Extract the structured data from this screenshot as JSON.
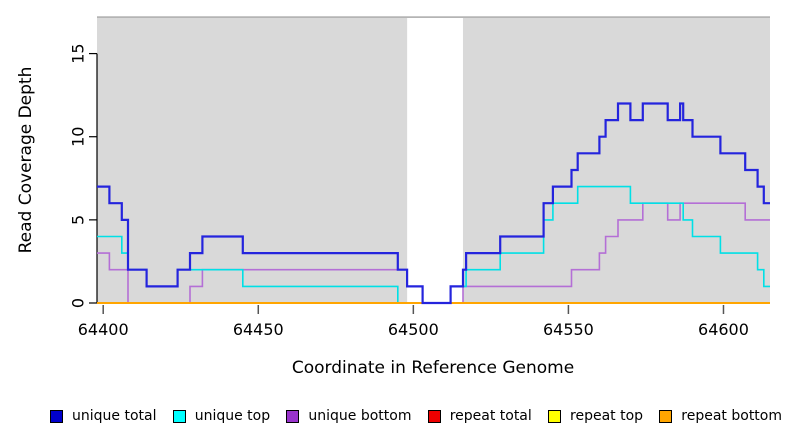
{
  "chart_data": {
    "type": "line",
    "subtype": "step-coverage",
    "title": "",
    "xlabel": "Coordinate in Reference Genome",
    "ylabel": "Read Coverage Depth",
    "xlim": [
      64398,
      64615
    ],
    "ylim": [
      0,
      17.2
    ],
    "x_ticks": [
      64400,
      64450,
      64500,
      64550,
      64600
    ],
    "y_ticks": [
      0,
      5,
      10,
      15
    ],
    "grid": false,
    "panel_bg": "#d9d9d9",
    "masked_band": {
      "x0": 64498,
      "x1": 64516,
      "color": "#ffffff"
    },
    "x_end": 64615,
    "series": [
      {
        "name": "repeat total",
        "color": "#ee0000",
        "width": 1.5,
        "steps": [
          [
            64398,
            0
          ]
        ]
      },
      {
        "name": "repeat top",
        "color": "#ffff00",
        "width": 1.5,
        "steps": [
          [
            64398,
            0
          ]
        ]
      },
      {
        "name": "unique bottom",
        "color": "#b46fd6",
        "width": 1.6,
        "steps": [
          [
            64398,
            3
          ],
          [
            64402,
            2
          ],
          [
            64408,
            0
          ],
          [
            64428,
            1
          ],
          [
            64432,
            2
          ],
          [
            64498,
            1
          ],
          [
            64503,
            0
          ],
          [
            64516,
            1
          ],
          [
            64551,
            2
          ],
          [
            64560,
            3
          ],
          [
            64562,
            4
          ],
          [
            64566,
            5
          ],
          [
            64574,
            6
          ],
          [
            64582,
            5
          ],
          [
            64586,
            6
          ],
          [
            64607,
            5
          ]
        ]
      },
      {
        "name": "unique top",
        "color": "#00e0e6",
        "width": 1.6,
        "steps": [
          [
            64398,
            4
          ],
          [
            64406,
            3
          ],
          [
            64408,
            2
          ],
          [
            64414,
            1
          ],
          [
            64424,
            2
          ],
          [
            64445,
            1
          ],
          [
            64495,
            0
          ],
          [
            64512,
            1
          ],
          [
            64517,
            2
          ],
          [
            64528,
            3
          ],
          [
            64542,
            5
          ],
          [
            64545,
            6
          ],
          [
            64553,
            7
          ],
          [
            64570,
            6
          ],
          [
            64587,
            5
          ],
          [
            64590,
            4
          ],
          [
            64599,
            3
          ],
          [
            64611,
            2
          ],
          [
            64613,
            1
          ]
        ]
      },
      {
        "name": "repeat bottom",
        "color": "#ffa500",
        "width": 2,
        "steps": [
          [
            64398,
            0
          ]
        ]
      },
      {
        "name": "unique total",
        "color": "#2424dd",
        "width": 2.2,
        "steps": [
          [
            64398,
            7
          ],
          [
            64402,
            6
          ],
          [
            64406,
            5
          ],
          [
            64408,
            2
          ],
          [
            64414,
            1
          ],
          [
            64424,
            2
          ],
          [
            64428,
            3
          ],
          [
            64432,
            4
          ],
          [
            64445,
            3
          ],
          [
            64495,
            2
          ],
          [
            64498,
            1
          ],
          [
            64503,
            0
          ],
          [
            64512,
            1
          ],
          [
            64516,
            2
          ],
          [
            64517,
            3
          ],
          [
            64528,
            4
          ],
          [
            64542,
            6
          ],
          [
            64545,
            7
          ],
          [
            64551,
            8
          ],
          [
            64553,
            9
          ],
          [
            64560,
            10
          ],
          [
            64562,
            11
          ],
          [
            64566,
            12
          ],
          [
            64570,
            11
          ],
          [
            64574,
            12
          ],
          [
            64582,
            11
          ],
          [
            64586,
            12
          ],
          [
            64587,
            11
          ],
          [
            64590,
            10
          ],
          [
            64599,
            9
          ],
          [
            64607,
            8
          ],
          [
            64611,
            7
          ],
          [
            64613,
            6
          ]
        ]
      }
    ],
    "legend": [
      {
        "label": "unique total",
        "color": "#0000cc"
      },
      {
        "label": "unique top",
        "color": "#00ffff"
      },
      {
        "label": "unique bottom",
        "color": "#9933cc"
      },
      {
        "label": "repeat total",
        "color": "#ee0000"
      },
      {
        "label": "repeat top",
        "color": "#ffff00"
      },
      {
        "label": "repeat bottom",
        "color": "#ffa500"
      }
    ],
    "legend_position": "bottom"
  }
}
